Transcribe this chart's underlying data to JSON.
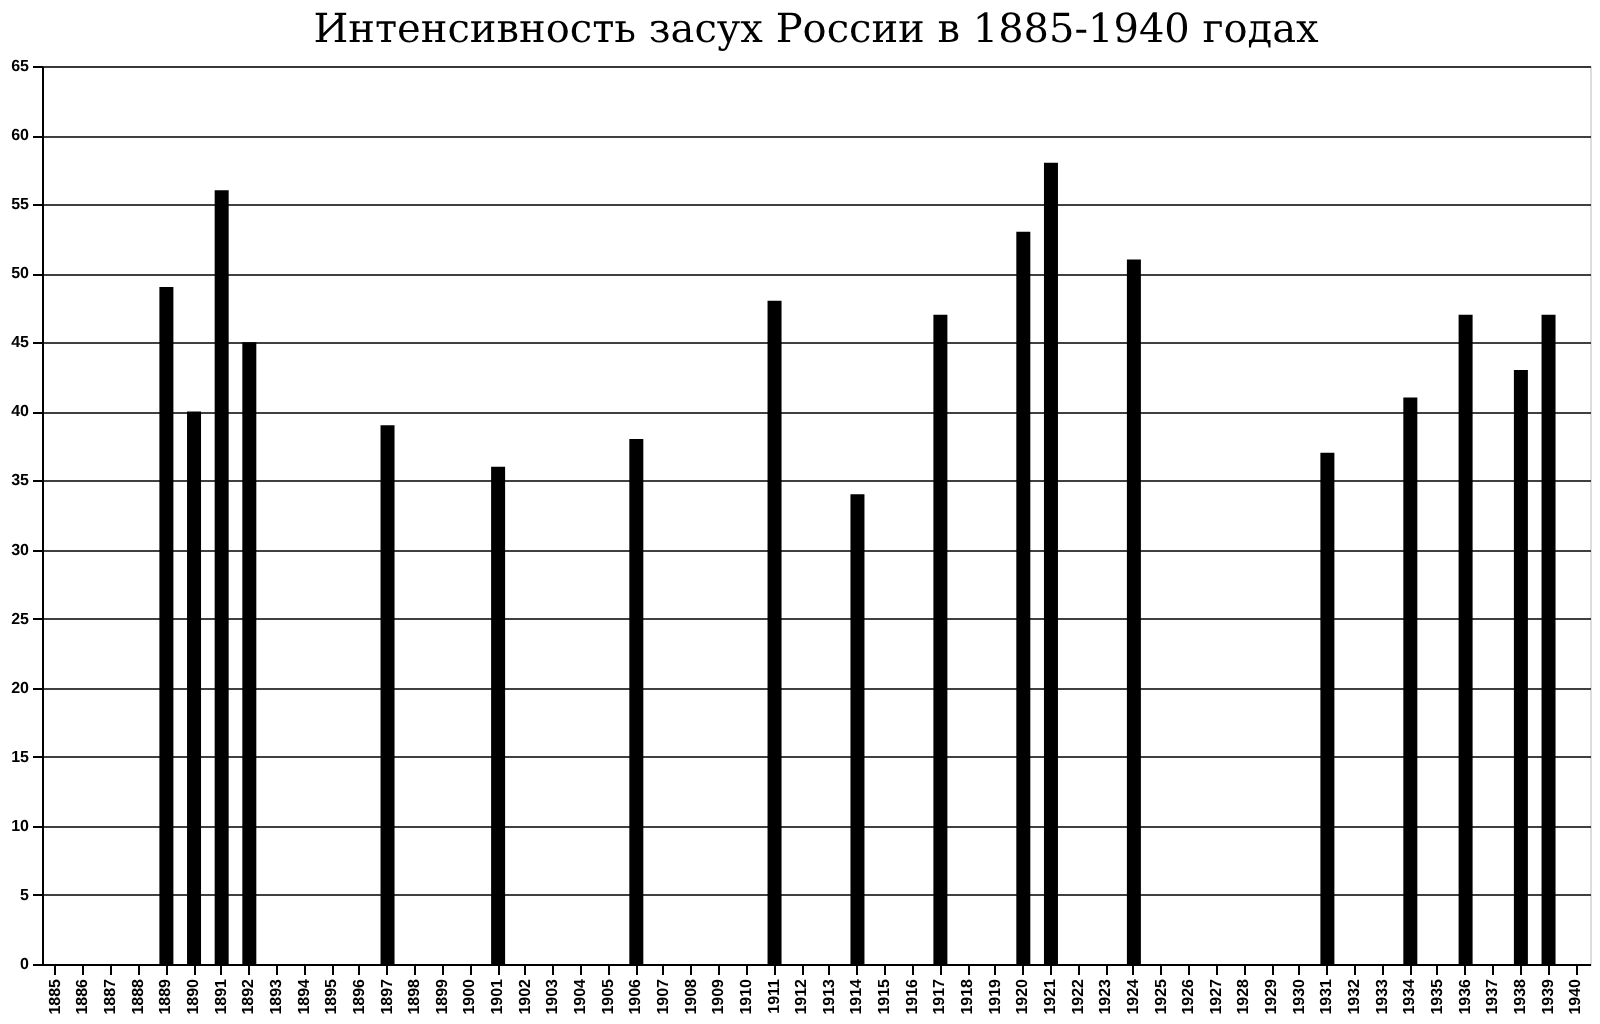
{
  "chart_data": {
    "type": "bar",
    "title": "Интенсивность засух России в 1885-1940 годах",
    "categories": [
      "1885",
      "1886",
      "1887",
      "1888",
      "1889",
      "1890",
      "1891",
      "1892",
      "1893",
      "1894",
      "1895",
      "1896",
      "1897",
      "1898",
      "1899",
      "1900",
      "1901",
      "1902",
      "1903",
      "1904",
      "1905",
      "1906",
      "1907",
      "1908",
      "1909",
      "1910",
      "1911",
      "1912",
      "1913",
      "1914",
      "1915",
      "1916",
      "1917",
      "1918",
      "1919",
      "1920",
      "1921",
      "1922",
      "1923",
      "1924",
      "1925",
      "1926",
      "1927",
      "1928",
      "1929",
      "1930",
      "1931",
      "1932",
      "1933",
      "1934",
      "1935",
      "1936",
      "1937",
      "1938",
      "1939",
      "1940"
    ],
    "values": [
      null,
      null,
      null,
      null,
      49,
      40,
      56,
      45,
      null,
      null,
      null,
      null,
      39,
      null,
      null,
      null,
      36,
      null,
      null,
      null,
      null,
      38,
      null,
      null,
      null,
      null,
      48,
      null,
      null,
      34,
      null,
      null,
      47,
      null,
      null,
      53,
      58,
      null,
      null,
      51,
      null,
      null,
      null,
      null,
      null,
      null,
      37,
      null,
      null,
      41,
      null,
      47,
      null,
      43,
      47,
      null
    ],
    "color": "#000000",
    "ylim": [
      0,
      65
    ],
    "yticks": [
      0,
      5,
      10,
      15,
      20,
      25,
      30,
      35,
      40,
      45,
      50,
      55,
      60,
      65
    ],
    "grid": "y"
  }
}
